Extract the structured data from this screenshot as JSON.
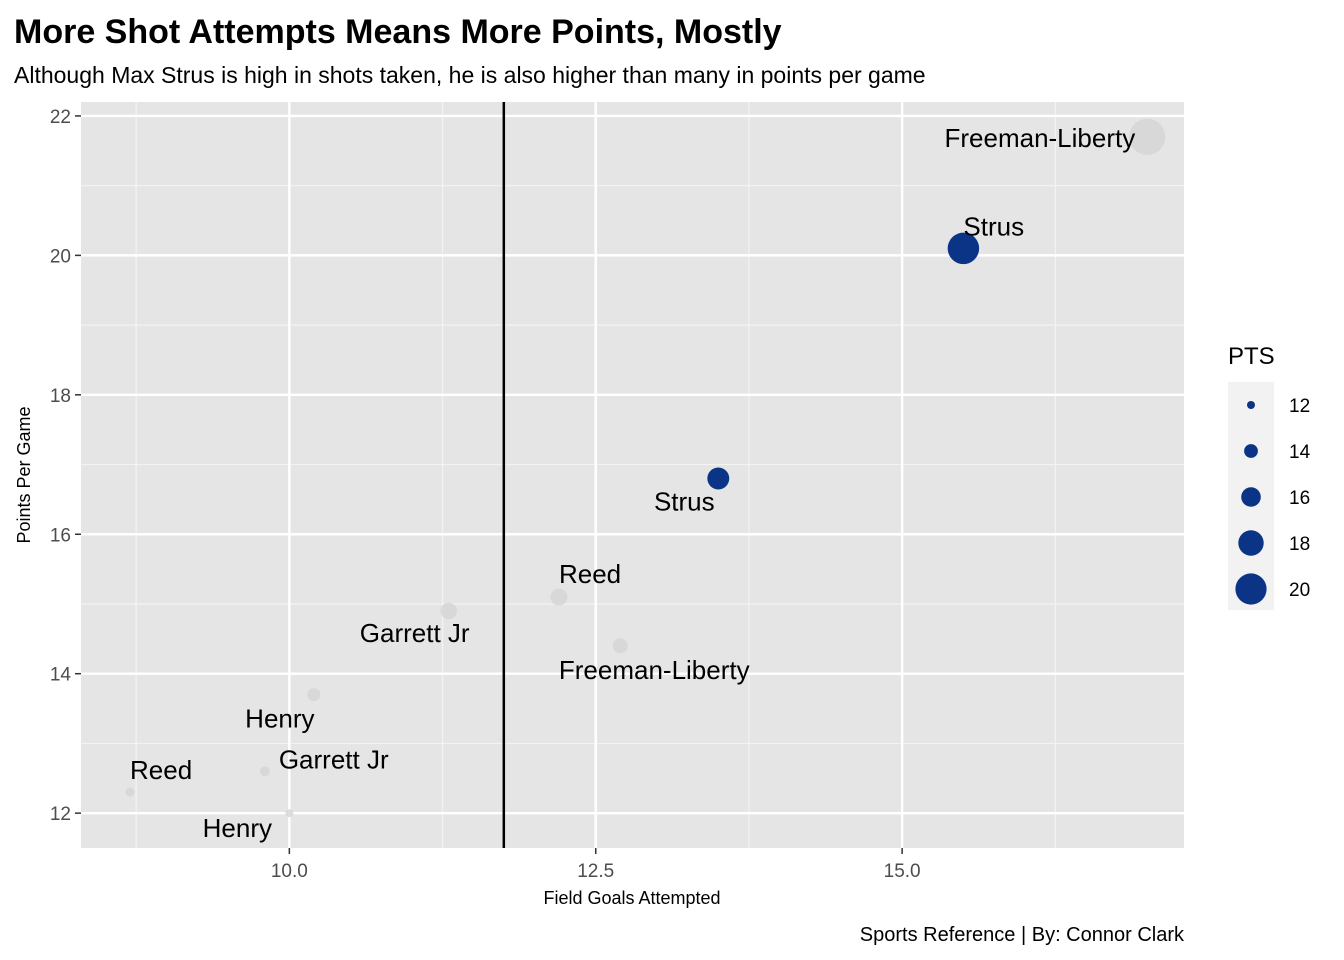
{
  "chart_data": {
    "type": "scatter",
    "title": "More Shot Attempts Means More Points, Mostly",
    "subtitle": "Although Max Strus is high in shots taken, he is also higher than many in points per game",
    "xlabel": "Field Goals Attempted",
    "ylabel": "Points Per Game",
    "caption": "Sports Reference | By: Connor Clark",
    "xlim": [
      8.3,
      17.3
    ],
    "ylim": [
      11.5,
      22.2
    ],
    "xticks": [
      10.0,
      12.5,
      15.0
    ],
    "xtick_labels": [
      "10.0",
      "12.5",
      "15.0"
    ],
    "yticks": [
      12,
      14,
      16,
      18,
      20,
      22
    ],
    "ytick_labels": [
      "12",
      "14",
      "16",
      "18",
      "20",
      "22"
    ],
    "vline_x": 11.75,
    "grid": true,
    "legend": {
      "title": "PTS",
      "placement": "right",
      "values": [
        12,
        14,
        16,
        18,
        20
      ],
      "labels": [
        "12",
        "14",
        "16",
        "18",
        "20"
      ]
    },
    "colors": {
      "highlight": "#0b3486",
      "other": "#d3d3d3",
      "panel": "#e5e5e5",
      "grid": "#ffffff"
    },
    "points": [
      {
        "label": "Freeman-Liberty",
        "x": 17.0,
        "y": 21.7,
        "pts": 21.7,
        "highlight": false
      },
      {
        "label": "Strus",
        "x": 15.5,
        "y": 20.1,
        "pts": 20.1,
        "highlight": true
      },
      {
        "label": "Strus",
        "x": 13.5,
        "y": 16.8,
        "pts": 16.8,
        "highlight": true
      },
      {
        "label": "Reed",
        "x": 12.2,
        "y": 15.1,
        "pts": 15.1,
        "highlight": false
      },
      {
        "label": "Garrett Jr",
        "x": 11.3,
        "y": 14.9,
        "pts": 14.9,
        "highlight": false
      },
      {
        "label": "Freeman-Liberty",
        "x": 12.7,
        "y": 14.4,
        "pts": 14.4,
        "highlight": false
      },
      {
        "label": "Henry",
        "x": 10.2,
        "y": 13.7,
        "pts": 13.7,
        "highlight": false
      },
      {
        "label": "Garrett Jr",
        "x": 9.8,
        "y": 12.6,
        "pts": 12.6,
        "highlight": false
      },
      {
        "label": "Reed",
        "x": 8.7,
        "y": 12.3,
        "pts": 12.3,
        "highlight": false
      },
      {
        "label": "Henry",
        "x": 10.0,
        "y": 12.0,
        "pts": 12.0,
        "highlight": false
      }
    ]
  }
}
